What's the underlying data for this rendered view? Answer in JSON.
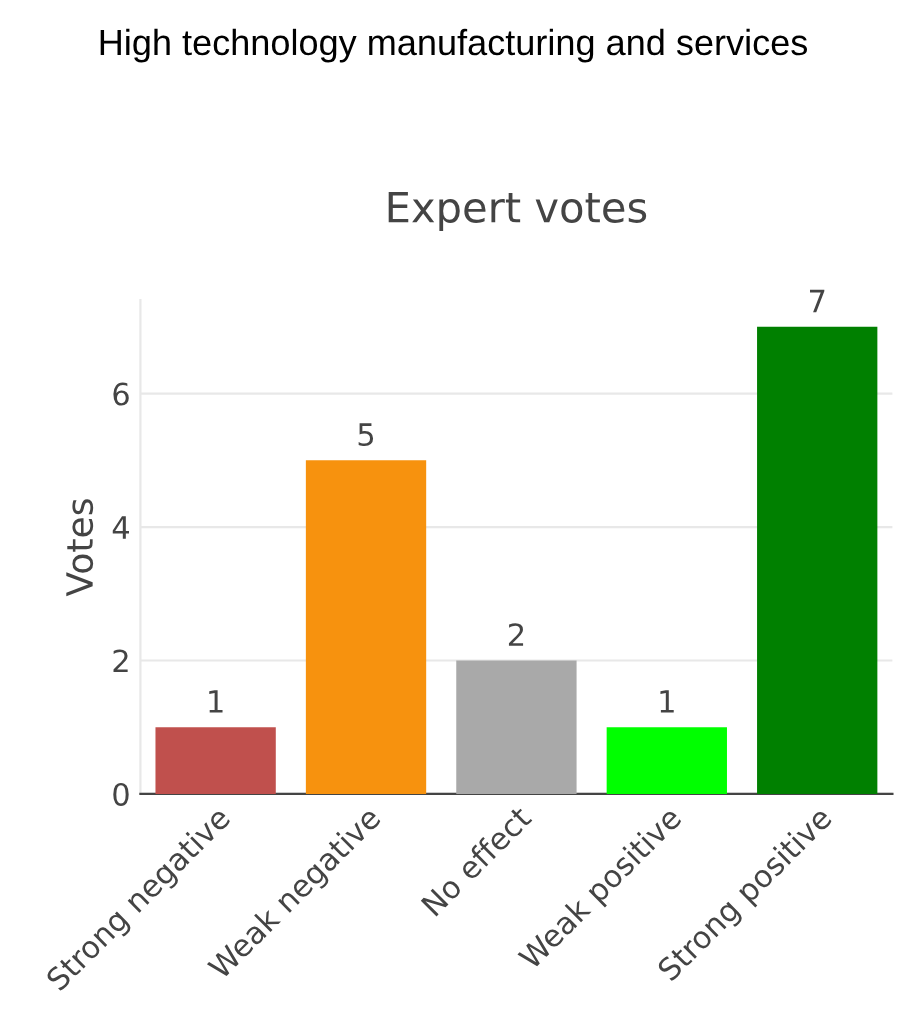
{
  "chart_data": {
    "type": "bar",
    "title": "Expert votes",
    "subtitle": "High technology manufacturing and services",
    "ylabel": "Votes",
    "categories": [
      "Strong negative",
      "Weak negative",
      "No effect",
      "Weak positive",
      "Strong positive"
    ],
    "values": [
      1,
      5,
      2,
      1,
      7
    ],
    "colors": [
      "#c0504d",
      "#f7920e",
      "#a9a9a9",
      "#00ff00",
      "#008000"
    ],
    "ylim": [
      0,
      7.4
    ],
    "yticks": [
      0,
      2,
      4,
      6
    ],
    "grid": "y",
    "data_labels": true
  }
}
